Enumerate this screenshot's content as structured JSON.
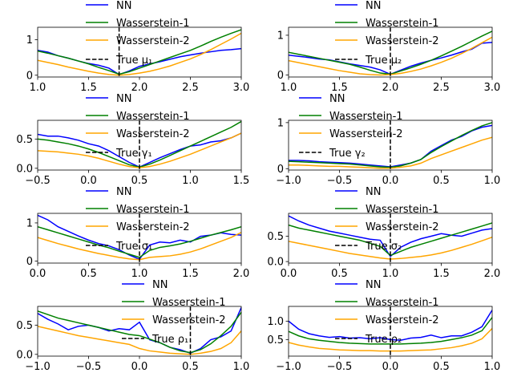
{
  "legend_labels": {
    "nn": "NN",
    "w1": "Wasserstein-1",
    "w2": "Wasserstein-2"
  },
  "colors": {
    "nn": "#0000ff",
    "w1": "#008000",
    "w2": "#ffa500",
    "truth": "#000000"
  },
  "chart_data": [
    {
      "type": "line",
      "true_label": "True μ₁",
      "true_value": 1.8,
      "xlim": [
        1.0,
        3.0
      ],
      "ylim": [
        -0.05,
        1.35
      ],
      "xticks": [
        1.0,
        1.5,
        2.0,
        2.5,
        3.0
      ],
      "xtick_labels": [
        "1.0",
        "1.5",
        "2.0",
        "2.5",
        "3.0"
      ],
      "yticks": [
        0,
        1
      ],
      "ytick_labels": [
        "0",
        "1"
      ],
      "x": [
        1.0,
        1.1,
        1.2,
        1.3,
        1.4,
        1.5,
        1.6,
        1.7,
        1.8,
        1.9,
        2.0,
        2.1,
        2.2,
        2.3,
        2.4,
        2.5,
        2.6,
        2.7,
        2.8,
        2.9,
        3.0
      ],
      "series": [
        {
          "name": "NN",
          "values": [
            0.7,
            0.65,
            0.55,
            0.48,
            0.4,
            0.33,
            0.28,
            0.2,
            0.02,
            0.12,
            0.25,
            0.32,
            0.38,
            0.45,
            0.52,
            0.57,
            0.62,
            0.66,
            0.7,
            0.72,
            0.75
          ]
        },
        {
          "name": "Wasserstein-1",
          "values": [
            0.68,
            0.62,
            0.55,
            0.48,
            0.4,
            0.32,
            0.22,
            0.13,
            0.03,
            0.1,
            0.2,
            0.3,
            0.4,
            0.5,
            0.6,
            0.7,
            0.82,
            0.95,
            1.07,
            1.18,
            1.28
          ]
        },
        {
          "name": "Wasserstein-2",
          "values": [
            0.42,
            0.36,
            0.3,
            0.23,
            0.17,
            0.11,
            0.06,
            0.02,
            0.0,
            0.02,
            0.06,
            0.11,
            0.18,
            0.26,
            0.36,
            0.46,
            0.58,
            0.72,
            0.87,
            1.02,
            1.18
          ]
        }
      ]
    },
    {
      "type": "line",
      "true_label": "True μ₂",
      "true_value": 2.0,
      "xlim": [
        1.0,
        3.0
      ],
      "ylim": [
        -0.05,
        1.2
      ],
      "xticks": [
        1.0,
        1.5,
        2.0,
        2.5,
        3.0
      ],
      "xtick_labels": [
        "1.0",
        "1.5",
        "2.0",
        "2.5",
        "3.0"
      ],
      "yticks": [
        0,
        1
      ],
      "ytick_labels": [
        "0",
        "1"
      ],
      "x": [
        1.0,
        1.1,
        1.2,
        1.3,
        1.4,
        1.5,
        1.6,
        1.7,
        1.8,
        1.9,
        2.0,
        2.1,
        2.2,
        2.3,
        2.4,
        2.5,
        2.6,
        2.7,
        2.8,
        2.9,
        3.0
      ],
      "series": [
        {
          "name": "NN",
          "values": [
            0.5,
            0.47,
            0.44,
            0.4,
            0.38,
            0.33,
            0.28,
            0.24,
            0.2,
            0.13,
            0.02,
            0.12,
            0.22,
            0.3,
            0.37,
            0.43,
            0.5,
            0.58,
            0.65,
            0.8,
            0.82
          ]
        },
        {
          "name": "Wasserstein-1",
          "values": [
            0.57,
            0.52,
            0.47,
            0.42,
            0.37,
            0.32,
            0.27,
            0.2,
            0.12,
            0.05,
            0.02,
            0.1,
            0.18,
            0.27,
            0.37,
            0.48,
            0.6,
            0.72,
            0.85,
            0.98,
            1.1
          ]
        },
        {
          "name": "Wasserstein-2",
          "values": [
            0.36,
            0.31,
            0.26,
            0.21,
            0.16,
            0.11,
            0.07,
            0.03,
            0.01,
            0.0,
            0.01,
            0.04,
            0.09,
            0.15,
            0.23,
            0.32,
            0.42,
            0.54,
            0.67,
            0.81,
            0.95
          ]
        }
      ]
    },
    {
      "type": "line",
      "true_label": "True γ₁",
      "true_value": 0.5,
      "xlim": [
        -0.5,
        1.5
      ],
      "ylim": [
        -0.03,
        0.82
      ],
      "xticks": [
        -0.5,
        0.0,
        0.5,
        1.0,
        1.5
      ],
      "xtick_labels": [
        "−0.5",
        "0.0",
        "0.5",
        "1.0",
        "1.5"
      ],
      "yticks": [
        0,
        0.5
      ],
      "ytick_labels": [
        "0.0",
        "0.5"
      ],
      "x": [
        -0.5,
        -0.4,
        -0.3,
        -0.2,
        -0.1,
        0.0,
        0.1,
        0.2,
        0.3,
        0.4,
        0.5,
        0.6,
        0.7,
        0.8,
        0.9,
        1.0,
        1.1,
        1.2,
        1.3,
        1.4,
        1.5
      ],
      "series": [
        {
          "name": "NN",
          "values": [
            0.58,
            0.55,
            0.55,
            0.52,
            0.48,
            0.42,
            0.38,
            0.3,
            0.2,
            0.1,
            0.02,
            0.1,
            0.18,
            0.25,
            0.32,
            0.38,
            0.4,
            0.45,
            0.47,
            0.52,
            0.6
          ]
        },
        {
          "name": "Wasserstein-1",
          "values": [
            0.5,
            0.48,
            0.45,
            0.42,
            0.38,
            0.33,
            0.27,
            0.2,
            0.13,
            0.06,
            0.02,
            0.07,
            0.14,
            0.22,
            0.3,
            0.38,
            0.46,
            0.54,
            0.62,
            0.7,
            0.8
          ]
        },
        {
          "name": "Wasserstein-2",
          "values": [
            0.3,
            0.29,
            0.28,
            0.26,
            0.24,
            0.21,
            0.17,
            0.12,
            0.07,
            0.03,
            0.01,
            0.03,
            0.07,
            0.12,
            0.18,
            0.24,
            0.31,
            0.38,
            0.45,
            0.52,
            0.6
          ]
        }
      ]
    },
    {
      "type": "line",
      "true_label": "True γ₂",
      "true_value": 0.0,
      "xlim": [
        -1.0,
        1.0
      ],
      "ylim": [
        -0.03,
        1.05
      ],
      "xticks": [
        -1.0,
        -0.5,
        0.0,
        0.5,
        1.0
      ],
      "xtick_labels": [
        "−1.0",
        "−0.5",
        "0.0",
        "0.5",
        "1.0"
      ],
      "yticks": [
        0,
        1
      ],
      "ytick_labels": [
        "0",
        "1"
      ],
      "x": [
        -1.0,
        -0.9,
        -0.8,
        -0.7,
        -0.6,
        -0.5,
        -0.4,
        -0.3,
        -0.2,
        -0.1,
        0.0,
        0.1,
        0.2,
        0.3,
        0.4,
        0.5,
        0.6,
        0.7,
        0.8,
        0.9,
        1.0
      ],
      "series": [
        {
          "name": "NN",
          "values": [
            0.18,
            0.18,
            0.17,
            0.15,
            0.14,
            0.13,
            0.12,
            0.1,
            0.08,
            0.06,
            0.04,
            0.08,
            0.12,
            0.2,
            0.38,
            0.5,
            0.62,
            0.7,
            0.82,
            0.9,
            0.94
          ]
        },
        {
          "name": "Wasserstein-1",
          "values": [
            0.16,
            0.15,
            0.14,
            0.13,
            0.12,
            0.11,
            0.1,
            0.08,
            0.06,
            0.04,
            0.03,
            0.06,
            0.12,
            0.2,
            0.35,
            0.48,
            0.6,
            0.72,
            0.83,
            0.93,
            1.0
          ]
        },
        {
          "name": "Wasserstein-2",
          "values": [
            0.08,
            0.08,
            0.07,
            0.06,
            0.05,
            0.05,
            0.04,
            0.03,
            0.02,
            0.01,
            0.01,
            0.03,
            0.06,
            0.12,
            0.22,
            0.3,
            0.38,
            0.46,
            0.54,
            0.62,
            0.68
          ]
        }
      ]
    },
    {
      "type": "line",
      "true_label": "True σ₁",
      "true_value": 1.0,
      "xlim": [
        0.0,
        2.0
      ],
      "ylim": [
        -0.05,
        1.25
      ],
      "xticks": [
        0.0,
        0.5,
        1.0,
        1.5,
        2.0
      ],
      "xtick_labels": [
        "0.0",
        "0.5",
        "1.0",
        "1.5",
        "2.0"
      ],
      "yticks": [
        0,
        1
      ],
      "ytick_labels": [
        "0",
        "1"
      ],
      "x": [
        0.0,
        0.1,
        0.2,
        0.3,
        0.4,
        0.5,
        0.6,
        0.7,
        0.8,
        0.9,
        1.0,
        1.1,
        1.2,
        1.3,
        1.4,
        1.5,
        1.6,
        1.7,
        1.8,
        1.9,
        2.0
      ],
      "series": [
        {
          "name": "NN",
          "values": [
            1.2,
            1.08,
            0.9,
            0.78,
            0.66,
            0.55,
            0.46,
            0.4,
            0.3,
            0.16,
            0.05,
            0.42,
            0.5,
            0.48,
            0.55,
            0.5,
            0.65,
            0.68,
            0.74,
            0.7,
            0.68
          ]
        },
        {
          "name": "Wasserstein-1",
          "values": [
            0.9,
            0.82,
            0.74,
            0.66,
            0.58,
            0.5,
            0.42,
            0.35,
            0.26,
            0.18,
            0.1,
            0.28,
            0.36,
            0.4,
            0.45,
            0.52,
            0.6,
            0.68,
            0.75,
            0.82,
            0.9
          ]
        },
        {
          "name": "Wasserstein-2",
          "values": [
            0.62,
            0.54,
            0.46,
            0.39,
            0.32,
            0.26,
            0.2,
            0.15,
            0.1,
            0.06,
            0.04,
            0.1,
            0.12,
            0.14,
            0.18,
            0.24,
            0.32,
            0.42,
            0.52,
            0.62,
            0.75
          ]
        }
      ]
    },
    {
      "type": "line",
      "true_label": "True σ₂",
      "true_value": 1.0,
      "xlim": [
        0.0,
        2.0
      ],
      "ylim": [
        -0.03,
        0.95
      ],
      "xticks": [
        0.0,
        0.5,
        1.0,
        1.5,
        2.0
      ],
      "xtick_labels": [
        "0.0",
        "0.5",
        "1.0",
        "1.5",
        "2.0"
      ],
      "yticks": [
        0,
        0.5
      ],
      "ytick_labels": [
        "0.0",
        "0.5"
      ],
      "x": [
        0.0,
        0.1,
        0.2,
        0.3,
        0.4,
        0.5,
        0.6,
        0.7,
        0.8,
        0.9,
        1.0,
        1.1,
        1.2,
        1.3,
        1.4,
        1.5,
        1.6,
        1.7,
        1.8,
        1.9,
        2.0
      ],
      "series": [
        {
          "name": "NN",
          "values": [
            0.9,
            0.8,
            0.72,
            0.66,
            0.6,
            0.56,
            0.52,
            0.48,
            0.44,
            0.42,
            0.1,
            0.28,
            0.38,
            0.45,
            0.5,
            0.55,
            0.52,
            0.5,
            0.56,
            0.62,
            0.65
          ]
        },
        {
          "name": "Wasserstein-1",
          "values": [
            0.72,
            0.66,
            0.62,
            0.58,
            0.54,
            0.5,
            0.46,
            0.42,
            0.36,
            0.3,
            0.12,
            0.2,
            0.28,
            0.34,
            0.4,
            0.46,
            0.52,
            0.58,
            0.64,
            0.7,
            0.76
          ]
        },
        {
          "name": "Wasserstein-2",
          "values": [
            0.4,
            0.36,
            0.32,
            0.28,
            0.24,
            0.2,
            0.16,
            0.13,
            0.1,
            0.07,
            0.05,
            0.06,
            0.08,
            0.1,
            0.13,
            0.17,
            0.22,
            0.28,
            0.34,
            0.41,
            0.48
          ]
        }
      ]
    },
    {
      "type": "line",
      "true_label": "True ρ₁",
      "true_value": 0.5,
      "xlim": [
        -1.0,
        1.0
      ],
      "ylim": [
        -0.03,
        0.82
      ],
      "xticks": [
        -1.0,
        -0.5,
        0.0,
        0.5,
        1.0
      ],
      "xtick_labels": [
        "−1.0",
        "−0.5",
        "0.0",
        "0.5",
        "1.0"
      ],
      "yticks": [
        0,
        0.5
      ],
      "ytick_labels": [
        "0.0",
        "0.5"
      ],
      "x": [
        -1.0,
        -0.9,
        -0.8,
        -0.7,
        -0.6,
        -0.5,
        -0.4,
        -0.3,
        -0.2,
        -0.1,
        0.0,
        0.1,
        0.2,
        0.3,
        0.4,
        0.5,
        0.6,
        0.7,
        0.8,
        0.9,
        1.0
      ],
      "series": [
        {
          "name": "NN",
          "values": [
            0.7,
            0.6,
            0.52,
            0.42,
            0.48,
            0.5,
            0.46,
            0.4,
            0.44,
            0.42,
            0.55,
            0.25,
            0.2,
            0.12,
            0.08,
            0.02,
            0.1,
            0.25,
            0.3,
            0.4,
            0.8
          ]
        },
        {
          "name": "Wasserstein-1",
          "values": [
            0.74,
            0.68,
            0.62,
            0.58,
            0.54,
            0.5,
            0.46,
            0.42,
            0.38,
            0.34,
            0.32,
            0.26,
            0.2,
            0.12,
            0.06,
            0.03,
            0.08,
            0.18,
            0.32,
            0.48,
            0.72
          ]
        },
        {
          "name": "Wasserstein-2",
          "values": [
            0.48,
            0.44,
            0.4,
            0.36,
            0.32,
            0.29,
            0.26,
            0.23,
            0.2,
            0.17,
            0.1,
            0.06,
            0.04,
            0.02,
            0.01,
            0.0,
            0.02,
            0.05,
            0.1,
            0.2,
            0.4
          ]
        }
      ]
    },
    {
      "type": "line",
      "true_label": "True ρ₂",
      "true_value": 0.0,
      "xlim": [
        -1.0,
        1.0
      ],
      "ylim": [
        0.05,
        1.4
      ],
      "xticks": [
        -1.0,
        -0.5,
        0.0,
        0.5,
        1.0
      ],
      "xtick_labels": [
        "−1.0",
        "−0.5",
        "0.0",
        "0.5",
        "1.0"
      ],
      "yticks": [
        0.5,
        1.0
      ],
      "ytick_labels": [
        "0.5",
        "1.0"
      ],
      "x": [
        -1.0,
        -0.9,
        -0.8,
        -0.7,
        -0.6,
        -0.5,
        -0.4,
        -0.3,
        -0.2,
        -0.1,
        0.0,
        0.1,
        0.2,
        0.3,
        0.4,
        0.5,
        0.6,
        0.7,
        0.8,
        0.9,
        1.0
      ],
      "series": [
        {
          "name": "NN",
          "values": [
            1.0,
            0.78,
            0.66,
            0.6,
            0.56,
            0.58,
            0.54,
            0.55,
            0.52,
            0.55,
            0.5,
            0.48,
            0.54,
            0.56,
            0.62,
            0.55,
            0.6,
            0.6,
            0.7,
            0.85,
            1.3
          ]
        },
        {
          "name": "Wasserstein-1",
          "values": [
            0.72,
            0.6,
            0.52,
            0.48,
            0.45,
            0.42,
            0.4,
            0.39,
            0.38,
            0.38,
            0.38,
            0.38,
            0.39,
            0.4,
            0.42,
            0.45,
            0.5,
            0.55,
            0.62,
            0.74,
            1.1
          ]
        },
        {
          "name": "Wasserstein-2",
          "values": [
            0.42,
            0.35,
            0.3,
            0.26,
            0.24,
            0.22,
            0.21,
            0.2,
            0.2,
            0.19,
            0.19,
            0.19,
            0.2,
            0.21,
            0.22,
            0.25,
            0.28,
            0.33,
            0.4,
            0.52,
            0.8
          ]
        }
      ]
    }
  ]
}
